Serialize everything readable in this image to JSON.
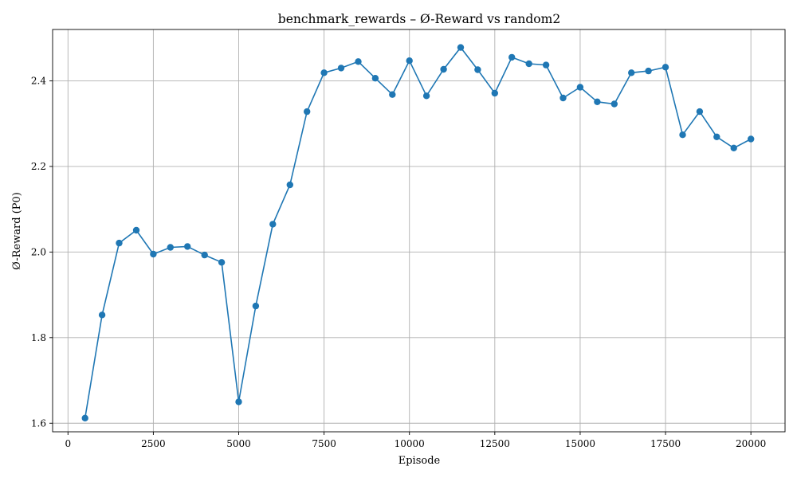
{
  "chart_data": {
    "type": "line",
    "title": "benchmark_rewards – Ø-Reward vs random2",
    "xlabel": "Episode",
    "ylabel": "Ø-Reward (P0)",
    "xlim": [
      -450,
      21000
    ],
    "ylim": [
      1.58,
      2.52
    ],
    "x_ticks": [
      0,
      2500,
      5000,
      7500,
      10000,
      12500,
      15000,
      17500,
      20000
    ],
    "y_ticks": [
      1.6,
      1.8,
      2.0,
      2.2,
      2.4
    ],
    "x_tick_labels": [
      "0",
      "2500",
      "5000",
      "7500",
      "10000",
      "12500",
      "15000",
      "17500",
      "20000"
    ],
    "y_tick_labels": [
      "1.6",
      "1.8",
      "2.0",
      "2.2",
      "2.4"
    ],
    "grid": true,
    "line_color": "#1f77b4",
    "marker": "circle",
    "series": [
      {
        "x": [
          500,
          1000,
          1500,
          2000,
          2500,
          3000,
          3500,
          4000,
          4500,
          5000,
          5500,
          6000,
          6500,
          7000,
          7500,
          8000,
          8500,
          9000,
          9500,
          10000,
          10500,
          11000,
          11500,
          12000,
          12500,
          13000,
          13500,
          14000,
          14500,
          15000,
          15500,
          16000,
          16500,
          17000,
          17500,
          18000,
          18500,
          19000,
          19500,
          20000
        ],
        "values": [
          1.612,
          1.853,
          2.021,
          2.051,
          1.995,
          2.011,
          2.013,
          1.993,
          1.976,
          1.65,
          1.874,
          2.065,
          2.157,
          2.328,
          2.419,
          2.43,
          2.445,
          2.406,
          2.368,
          2.447,
          2.365,
          2.427,
          2.478,
          2.426,
          2.371,
          2.455,
          2.44,
          2.437,
          2.36,
          2.385,
          2.351,
          2.346,
          2.419,
          2.423,
          2.432,
          2.274,
          2.328,
          2.269,
          2.243,
          2.264
        ]
      }
    ]
  }
}
